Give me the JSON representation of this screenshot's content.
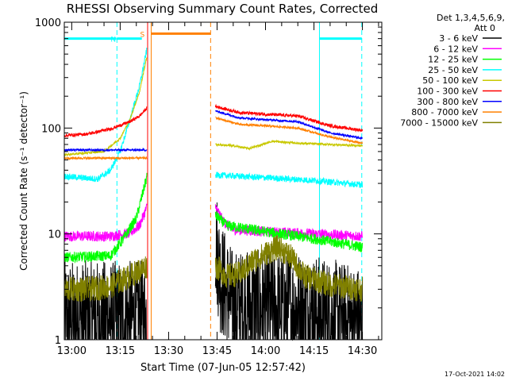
{
  "chart_data": {
    "type": "line",
    "title": "RHESSI Observing Summary Count Rates, Corrected",
    "xlabel": "Start Time (07-Jun-05 12:57:42)",
    "ylabel": "Corrected Count Rate (s⁻¹ detector⁻¹)",
    "y_scale": "log",
    "xlim_min": [
      -2.3,
      96
    ],
    "ylim": [
      1,
      1000
    ],
    "x_ticks": [
      {
        "v": 0,
        "label": "13:00"
      },
      {
        "v": 15,
        "label": "13:15"
      },
      {
        "v": 30,
        "label": "13:30"
      },
      {
        "v": 45,
        "label": "13:45"
      },
      {
        "v": 60,
        "label": "14:00"
      },
      {
        "v": 75,
        "label": "14:15"
      },
      {
        "v": 90,
        "label": "14:30"
      }
    ],
    "y_ticks": [
      {
        "v": 1,
        "label": "1"
      },
      {
        "v": 10,
        "label": "10"
      },
      {
        "v": 100,
        "label": "100"
      },
      {
        "v": 1000,
        "label": "1000"
      }
    ],
    "legend_header": [
      "Det 1,3,4,5,6,9,",
      "Att 0"
    ],
    "timestamp": "17-Oct-2021 14:02",
    "markers": [
      {
        "type": "night",
        "start": -2.3,
        "end": 13.8,
        "label": "",
        "color": "#00ffff"
      },
      {
        "type": "saa",
        "start": 24.6,
        "end": 43.0,
        "label": "S",
        "color": "#ff8000"
      },
      {
        "type": "night",
        "start": 14.0,
        "end": 21.7,
        "label": "N",
        "color": "#00ffff"
      },
      {
        "type": "night",
        "start": 76.7,
        "end": 89.8,
        "label": "",
        "color": "#00ffff"
      }
    ],
    "flag_levels": {
      "night_y": 700,
      "saa_y": 780
    },
    "vertical_lines": [
      {
        "x": -2.3,
        "color": "#00ffff",
        "dash": false
      },
      {
        "x": 14.0,
        "color": "#00ffff",
        "dash": true
      },
      {
        "x": 23.5,
        "color": "#ff0000",
        "dash": false
      },
      {
        "x": 24.6,
        "color": "#ff8000",
        "dash": false
      },
      {
        "x": 43.0,
        "color": "#ff8000",
        "dash": true
      },
      {
        "x": 76.7,
        "color": "#00ffff",
        "dash": false
      },
      {
        "x": 89.8,
        "color": "#00ffff",
        "dash": true
      }
    ],
    "series": [
      {
        "name": "3 - 6 keV",
        "color": "#000000",
        "noise": 0.55,
        "seg1": [
          [
            -2.3,
            1.6
          ],
          [
            23.3,
            1.6
          ]
        ],
        "seg2": [
          [
            44.5,
            9
          ],
          [
            46,
            4
          ],
          [
            50,
            2
          ],
          [
            60,
            2
          ],
          [
            70,
            2
          ],
          [
            90,
            1.4
          ]
        ]
      },
      {
        "name": "6 - 12 keV",
        "color": "#ff00ff",
        "noise": 0.05,
        "seg1": [
          [
            -2.3,
            9.5
          ],
          [
            12,
            9.5
          ],
          [
            18,
            10.2
          ],
          [
            21,
            12
          ],
          [
            23.3,
            18
          ]
        ],
        "seg2": [
          [
            44.5,
            18
          ],
          [
            47,
            13
          ],
          [
            50,
            11
          ],
          [
            60,
            10.5
          ],
          [
            75,
            10
          ],
          [
            90,
            9.5
          ]
        ]
      },
      {
        "name": "12 - 25 keV",
        "color": "#00ff00",
        "noise": 0.05,
        "seg1": [
          [
            -2.3,
            6
          ],
          [
            12,
            6.2
          ],
          [
            16,
            9
          ],
          [
            20,
            14
          ],
          [
            23.3,
            35
          ]
        ],
        "seg2": [
          [
            44.5,
            15
          ],
          [
            48,
            12
          ],
          [
            60,
            10.5
          ],
          [
            75,
            9
          ],
          [
            90,
            7.5
          ]
        ]
      },
      {
        "name": "25 - 50 keV",
        "color": "#00ffff",
        "noise": 0.03,
        "seg1": [
          [
            -2.3,
            35
          ],
          [
            8,
            33
          ],
          [
            12,
            40
          ],
          [
            15,
            60
          ],
          [
            18,
            120
          ],
          [
            21,
            250
          ],
          [
            23.3,
            560
          ]
        ],
        "seg2": [
          [
            44.5,
            36
          ],
          [
            60,
            34
          ],
          [
            75,
            32
          ],
          [
            90,
            29
          ]
        ]
      },
      {
        "name": "50 - 100 keV",
        "color": "#c8c800",
        "noise": 0.01,
        "seg1": [
          [
            -2.3,
            56
          ],
          [
            10,
            60
          ],
          [
            15,
            80
          ],
          [
            18,
            120
          ],
          [
            21,
            220
          ],
          [
            23.3,
            480
          ]
        ],
        "seg2": [
          [
            44.5,
            70
          ],
          [
            50,
            68
          ],
          [
            55,
            64
          ],
          [
            62,
            75
          ],
          [
            70,
            72
          ],
          [
            80,
            70
          ],
          [
            90,
            68
          ]
        ]
      },
      {
        "name": "100 - 300 keV",
        "color": "#ff0000",
        "noise": 0.015,
        "seg1": [
          [
            -2.3,
            85
          ],
          [
            5,
            88
          ],
          [
            12,
            98
          ],
          [
            18,
            115
          ],
          [
            21,
            130
          ],
          [
            23.3,
            155
          ]
        ],
        "seg2": [
          [
            44.5,
            160
          ],
          [
            52,
            140
          ],
          [
            60,
            135
          ],
          [
            70,
            130
          ],
          [
            80,
            105
          ],
          [
            90,
            95
          ]
        ]
      },
      {
        "name": "300 - 800 keV",
        "color": "#0000ff",
        "noise": 0.01,
        "seg1": [
          [
            -2.3,
            62
          ],
          [
            23.3,
            62
          ]
        ],
        "seg2": [
          [
            44.5,
            145
          ],
          [
            52,
            125
          ],
          [
            60,
            120
          ],
          [
            70,
            115
          ],
          [
            80,
            90
          ],
          [
            90,
            80
          ]
        ]
      },
      {
        "name": "800 - 7000 keV",
        "color": "#ff8000",
        "noise": 0.01,
        "seg1": [
          [
            -2.3,
            52
          ],
          [
            23.3,
            52
          ]
        ],
        "seg2": [
          [
            44.5,
            125
          ],
          [
            52,
            108
          ],
          [
            60,
            105
          ],
          [
            70,
            100
          ],
          [
            80,
            82
          ],
          [
            90,
            72
          ]
        ]
      },
      {
        "name": "7000 - 15000 keV",
        "color": "#808000",
        "noise": 0.12,
        "seg1": [
          [
            -2.3,
            3
          ],
          [
            5,
            3
          ],
          [
            12,
            3.2
          ],
          [
            18,
            4
          ],
          [
            23.3,
            5
          ]
        ],
        "seg2": [
          [
            44.5,
            5
          ],
          [
            48,
            4
          ],
          [
            52,
            4.2
          ],
          [
            56,
            5.5
          ],
          [
            60,
            6.5
          ],
          [
            64,
            7.5
          ],
          [
            68,
            6
          ],
          [
            72,
            4
          ],
          [
            80,
            3.3
          ],
          [
            90,
            3
          ]
        ]
      }
    ]
  }
}
